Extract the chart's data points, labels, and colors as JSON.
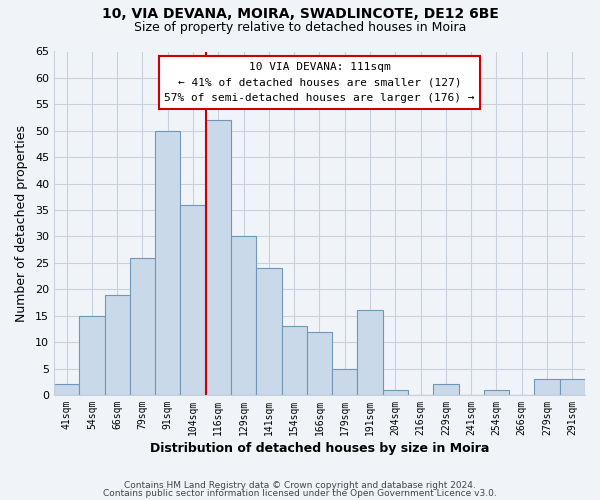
{
  "title1": "10, VIA DEVANA, MOIRA, SWADLINCOTE, DE12 6BE",
  "title2": "Size of property relative to detached houses in Moira",
  "xlabel": "Distribution of detached houses by size in Moira",
  "ylabel": "Number of detached properties",
  "categories": [
    "41sqm",
    "54sqm",
    "66sqm",
    "79sqm",
    "91sqm",
    "104sqm",
    "116sqm",
    "129sqm",
    "141sqm",
    "154sqm",
    "166sqm",
    "179sqm",
    "191sqm",
    "204sqm",
    "216sqm",
    "229sqm",
    "241sqm",
    "254sqm",
    "266sqm",
    "279sqm",
    "291sqm"
  ],
  "values": [
    2,
    15,
    19,
    26,
    50,
    36,
    52,
    30,
    24,
    13,
    12,
    5,
    16,
    1,
    0,
    2,
    0,
    1,
    0,
    3,
    3
  ],
  "bar_color": "#c9d9ea",
  "bar_edge_color": "#7096b8",
  "highlight_line_color": "#cc0000",
  "annotation_line1": "10 VIA DEVANA: 111sqm",
  "annotation_line2": "← 41% of detached houses are smaller (127)",
  "annotation_line3": "57% of semi-detached houses are larger (176) →",
  "ylim": [
    0,
    65
  ],
  "yticks": [
    0,
    5,
    10,
    15,
    20,
    25,
    30,
    35,
    40,
    45,
    50,
    55,
    60,
    65
  ],
  "footer1": "Contains HM Land Registry data © Crown copyright and database right 2024.",
  "footer2": "Contains public sector information licensed under the Open Government Licence v3.0.",
  "bg_color": "#f0f4f8",
  "plot_bg_color": "#f0f4f8",
  "grid_color": "#c8d0dc",
  "annotation_box_edgecolor": "#cc0000",
  "annotation_box_facecolor": "#ffffff"
}
